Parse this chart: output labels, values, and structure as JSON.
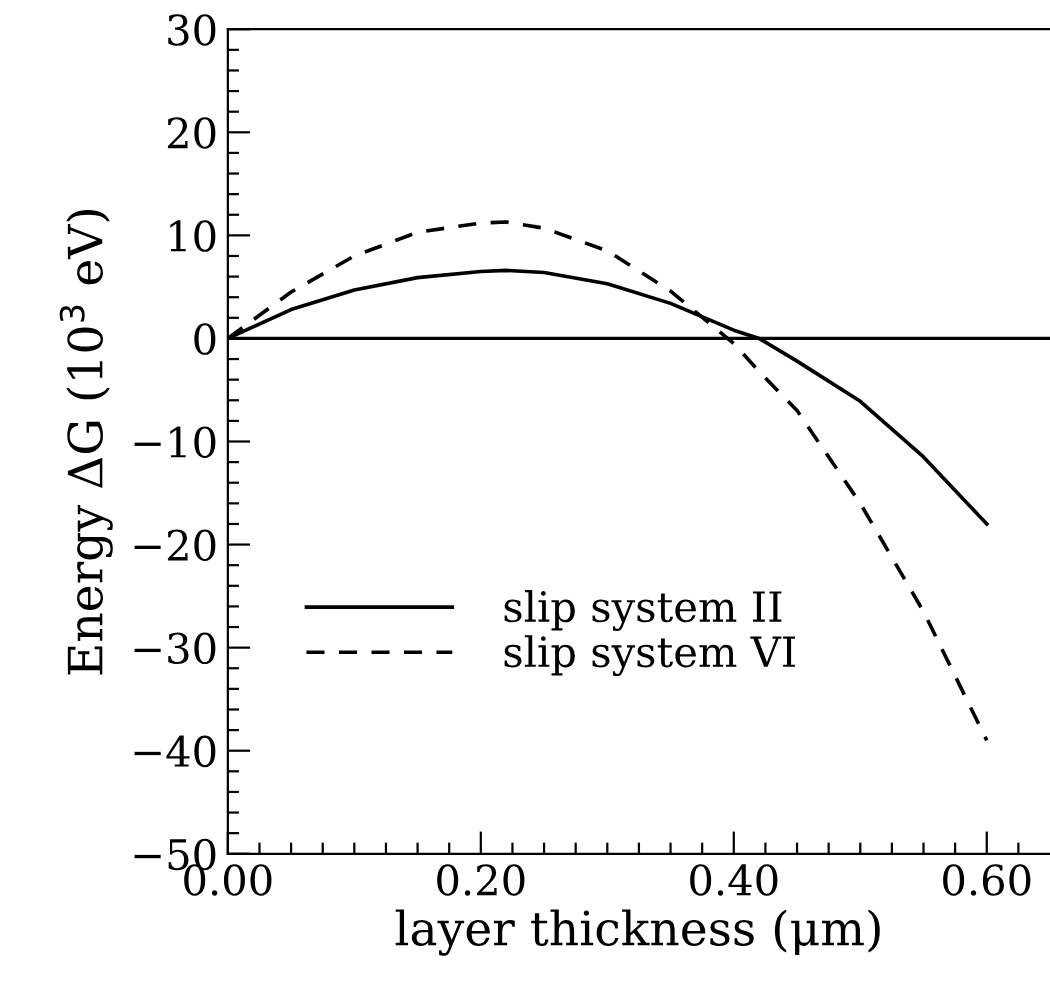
{
  "chart_data": {
    "type": "line",
    "xlabel": "layer thickness (μm)",
    "ylabel": "Energy ΔG (10$^{3}$ eV)",
    "xlim": [
      0,
      0.65
    ],
    "ylim": [
      -50,
      30
    ],
    "xticks": [
      {
        "value": 0,
        "label": "0.00"
      },
      {
        "value": 0.025,
        "label": null
      },
      {
        "value": 0.05,
        "label": null
      },
      {
        "value": 0.075,
        "label": null
      },
      {
        "value": 0.1,
        "label": null
      },
      {
        "value": 0.125,
        "label": null
      },
      {
        "value": 0.15,
        "label": null
      },
      {
        "value": 0.175,
        "label": null
      },
      {
        "value": 0.2,
        "label": "0.20"
      },
      {
        "value": 0.225,
        "label": null
      },
      {
        "value": 0.25,
        "label": null
      },
      {
        "value": 0.275,
        "label": null
      },
      {
        "value": 0.3,
        "label": null
      },
      {
        "value": 0.325,
        "label": null
      },
      {
        "value": 0.35,
        "label": null
      },
      {
        "value": 0.375,
        "label": null
      },
      {
        "value": 0.4,
        "label": "0.40"
      },
      {
        "value": 0.425,
        "label": null
      },
      {
        "value": 0.45,
        "label": null
      },
      {
        "value": 0.475,
        "label": null
      },
      {
        "value": 0.5,
        "label": null
      },
      {
        "value": 0.525,
        "label": null
      },
      {
        "value": 0.55,
        "label": null
      },
      {
        "value": 0.575,
        "label": null
      },
      {
        "value": 0.6,
        "label": "0.60"
      },
      {
        "value": 0.625,
        "label": null
      }
    ],
    "yticks": [
      -50,
      {
        "value": -48,
        "label": null
      },
      {
        "value": -46,
        "label": null
      },
      {
        "value": -44,
        "label": null
      },
      {
        "value": -42,
        "label": null
      },
      {
        "value": -40,
        "label": "−40"
      },
      {
        "value": -38,
        "label": null
      },
      {
        "value": -36,
        "label": null
      },
      {
        "value": -34,
        "label": null
      },
      {
        "value": -32,
        "label": null
      },
      {
        "value": -30,
        "label": "−30"
      },
      {
        "value": -28,
        "label": null
      },
      {
        "value": -26,
        "label": null
      },
      {
        "value": -24,
        "label": null
      },
      {
        "value": -22,
        "label": null
      },
      {
        "value": -20,
        "label": "−20"
      },
      {
        "value": -18,
        "label": null
      },
      {
        "value": -16,
        "label": null
      },
      {
        "value": -14,
        "label": null
      },
      {
        "value": -12,
        "label": null
      },
      {
        "value": -10,
        "label": "−10"
      },
      {
        "value": -8,
        "label": null
      },
      {
        "value": -6,
        "label": null
      },
      {
        "value": -4,
        "label": null
      },
      {
        "value": -2,
        "label": null
      },
      0,
      {
        "value": 2,
        "label": null
      },
      {
        "value": 4,
        "label": null
      },
      {
        "value": 6,
        "label": null
      },
      {
        "value": 8,
        "label": null
      },
      10,
      {
        "value": 12,
        "label": null
      },
      {
        "value": 14,
        "label": null
      },
      {
        "value": 16,
        "label": null
      },
      {
        "value": 18,
        "label": null
      },
      20,
      {
        "value": 22,
        "label": null
      },
      {
        "value": 24,
        "label": null
      },
      {
        "value": 26,
        "label": null
      },
      {
        "value": 28,
        "label": null
      },
      30
    ],
    "x": [
      0,
      0.05,
      0.1,
      0.15,
      0.2,
      0.22,
      0.25,
      0.3,
      0.35,
      0.4,
      0.42,
      0.45,
      0.5,
      0.55,
      0.6
    ],
    "series": [
      {
        "name": "slip system II",
        "color": "#000000",
        "line_style": "solid",
        "values": [
          0,
          2.8,
          4.7,
          5.9,
          6.5,
          6.6,
          6.4,
          5.3,
          3.4,
          0.8,
          0,
          -2.2,
          -6.1,
          -11.5,
          -18
        ]
      },
      {
        "name": "slip system VI",
        "color": "#000000",
        "line_style": "dashed",
        "values": [
          0,
          4.5,
          8.0,
          10.3,
          11.2,
          11.3,
          10.7,
          8.5,
          4.6,
          -0.5,
          -3.2,
          -7,
          -16,
          -26.5,
          -39
        ]
      }
    ],
    "ref_lines": [
      {
        "axis": "y",
        "value": 0,
        "color": "#000000",
        "line_style": "solid"
      }
    ],
    "legend": "bottom left",
    "grid": false,
    "marker": "none"
  }
}
